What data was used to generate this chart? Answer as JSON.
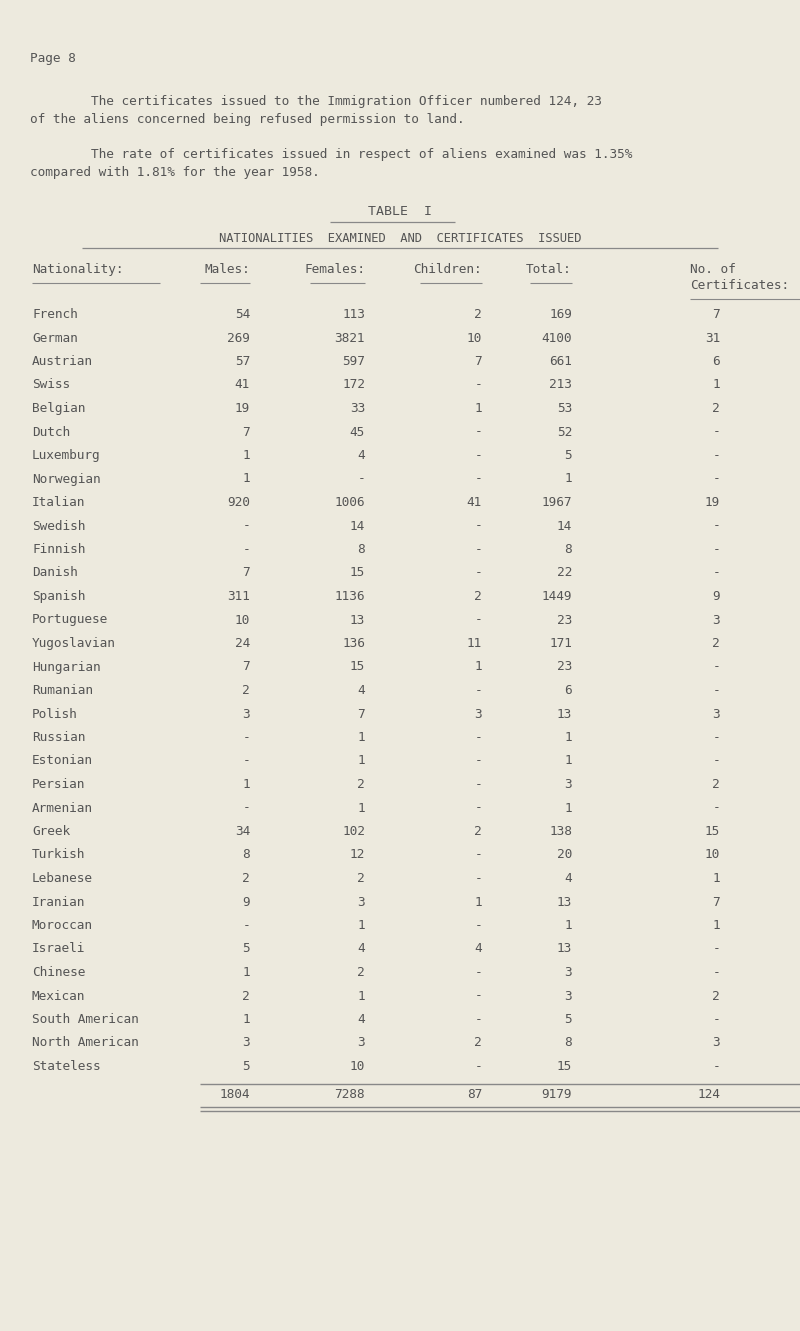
{
  "page_label": "Page 8",
  "para1_line1": "        The certificates issued to the Immigration Officer numbered 124, 23",
  "para1_line2": "of the aliens concerned being refused permission to land.",
  "para2_line1": "        The rate of certificates issued in respect of aliens examined was 1.35%",
  "para2_line2": "compared with 1.81% for the year 1958.",
  "table_title": "TABLE  I",
  "table_subtitle": "NATIONALITIES  EXAMINED  AND  CERTIFICATES  ISSUED",
  "rows": [
    [
      "French",
      "54",
      "113",
      "2",
      "169",
      "7"
    ],
    [
      "German",
      "269",
      "3821",
      "10",
      "4100",
      "31"
    ],
    [
      "Austrian",
      "57",
      "597",
      "7",
      "661",
      "6"
    ],
    [
      "Swiss",
      "41",
      "172",
      "-",
      "213",
      "1"
    ],
    [
      "Belgian",
      "19",
      "33",
      "1",
      "53",
      "2"
    ],
    [
      "Dutch",
      "7",
      "45",
      "-",
      "52",
      "-"
    ],
    [
      "Luxemburg",
      "1",
      "4",
      "-",
      "5",
      "-"
    ],
    [
      "Norwegian",
      "1",
      "-",
      "-",
      "1",
      "-"
    ],
    [
      "Italian",
      "920",
      "1006",
      "41",
      "1967",
      "19"
    ],
    [
      "Swedish",
      "-",
      "14",
      "-",
      "14",
      "-"
    ],
    [
      "Finnish",
      "-",
      "8",
      "-",
      "8",
      "-"
    ],
    [
      "Danish",
      "7",
      "15",
      "-",
      "22",
      "-"
    ],
    [
      "Spanish",
      "311",
      "1136",
      "2",
      "1449",
      "9"
    ],
    [
      "Portuguese",
      "10",
      "13",
      "-",
      "23",
      "3"
    ],
    [
      "Yugoslavian",
      "24",
      "136",
      "11",
      "171",
      "2"
    ],
    [
      "Hungarian",
      "7",
      "15",
      "1",
      "23",
      "-"
    ],
    [
      "Rumanian",
      "2",
      "4",
      "-",
      "6",
      "-"
    ],
    [
      "Polish",
      "3",
      "7",
      "3",
      "13",
      "3"
    ],
    [
      "Russian",
      "-",
      "1",
      "-",
      "1",
      "-"
    ],
    [
      "Estonian",
      "-",
      "1",
      "-",
      "1",
      "-"
    ],
    [
      "Persian",
      "1",
      "2",
      "-",
      "3",
      "2"
    ],
    [
      "Armenian",
      "-",
      "1",
      "-",
      "1",
      "-"
    ],
    [
      "Greek",
      "34",
      "102",
      "2",
      "138",
      "15"
    ],
    [
      "Turkish",
      "8",
      "12",
      "-",
      "20",
      "10"
    ],
    [
      "Lebanese",
      "2",
      "2",
      "-",
      "4",
      "1"
    ],
    [
      "Iranian",
      "9",
      "3",
      "1",
      "13",
      "7"
    ],
    [
      "Moroccan",
      "-",
      "1",
      "-",
      "1",
      "1"
    ],
    [
      "Israeli",
      "5",
      "4",
      "4",
      "13",
      "-"
    ],
    [
      "Chinese",
      "1",
      "2",
      "-",
      "3",
      "-"
    ],
    [
      "Mexican",
      "2",
      "1",
      "-",
      "3",
      "2"
    ],
    [
      "South American",
      "1",
      "4",
      "-",
      "5",
      "-"
    ],
    [
      "North American",
      "3",
      "3",
      "2",
      "8",
      "3"
    ],
    [
      "Stateless",
      "5",
      "10",
      "-",
      "15",
      "-"
    ]
  ],
  "totals": [
    "",
    "1804",
    "7288",
    "87",
    "9179",
    "124"
  ],
  "bg_color": "#edeade",
  "text_color": "#555555",
  "line_color": "#888888"
}
